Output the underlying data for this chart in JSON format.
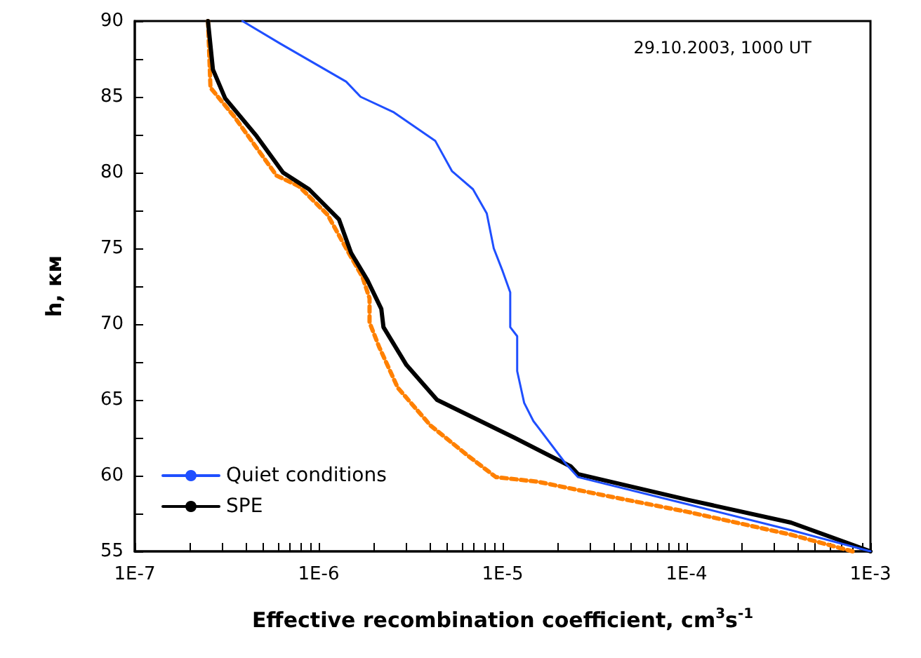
{
  "chart_data": {
    "type": "line",
    "xlabel": "Effective recombination coefficient, cm$^{3}$s$^{-1}$",
    "ylabel": "h, км",
    "annotations": [
      "29.10.2003, 1000 UT"
    ],
    "log": "x",
    "xlim": [
      1e-07,
      0.001
    ],
    "xticks": [
      {
        "value": 1e-07,
        "label": "1E-7"
      },
      {
        "value": 2e-07,
        "label": null
      },
      {
        "value": 3e-07,
        "label": null
      },
      {
        "value": 4e-07,
        "label": null
      },
      {
        "value": 5e-07,
        "label": null
      },
      {
        "value": 6e-07,
        "label": null
      },
      {
        "value": 7e-07,
        "label": null
      },
      {
        "value": 8e-07,
        "label": null
      },
      {
        "value": 9e-07,
        "label": null
      },
      {
        "value": 1e-06,
        "label": "1E-6"
      },
      {
        "value": 2e-06,
        "label": null
      },
      {
        "value": 3e-06,
        "label": null
      },
      {
        "value": 4e-06,
        "label": null
      },
      {
        "value": 5e-06,
        "label": null
      },
      {
        "value": 6e-06,
        "label": null
      },
      {
        "value": 7e-06,
        "label": null
      },
      {
        "value": 8e-06,
        "label": null
      },
      {
        "value": 9e-06,
        "label": null
      },
      {
        "value": 1e-05,
        "label": "1E-5"
      },
      {
        "value": 2e-05,
        "label": null
      },
      {
        "value": 3e-05,
        "label": null
      },
      {
        "value": 4e-05,
        "label": null
      },
      {
        "value": 5e-05,
        "label": null
      },
      {
        "value": 6e-05,
        "label": null
      },
      {
        "value": 7e-05,
        "label": null
      },
      {
        "value": 8e-05,
        "label": null
      },
      {
        "value": 9e-05,
        "label": null
      },
      {
        "value": 0.0001,
        "label": "1E-4"
      },
      {
        "value": 0.0002,
        "label": null
      },
      {
        "value": 0.0003,
        "label": null
      },
      {
        "value": 0.0004,
        "label": null
      },
      {
        "value": 0.0005,
        "label": null
      },
      {
        "value": 0.0006,
        "label": null
      },
      {
        "value": 0.0007,
        "label": null
      },
      {
        "value": 0.0008,
        "label": null
      },
      {
        "value": 0.0009,
        "label": null
      },
      {
        "value": 0.001,
        "label": "1E-3"
      }
    ],
    "ylim": [
      55,
      90
    ],
    "yticks": [
      55,
      {
        "value": 57.5,
        "label": null
      },
      60,
      {
        "value": 62.5,
        "label": null
      },
      65,
      {
        "value": 67.5,
        "label": null
      },
      70,
      {
        "value": 72.5,
        "label": null
      },
      75,
      {
        "value": 77.5,
        "label": null
      },
      80,
      {
        "value": 82.5,
        "label": null
      },
      85,
      {
        "value": 87.5,
        "label": null
      },
      90
    ],
    "grid": false,
    "legend": "bottom left",
    "marker": "none",
    "series": [
      {
        "name": "Quiet conditions",
        "color": "#1f4fff",
        "line_style": "solid",
        "x": [
          3.85e-07,
          6.2e-07,
          1.41e-06,
          1.69e-06,
          2.54e-06,
          4.3e-06,
          5.3e-06,
          6.9e-06,
          8.2e-06,
          8.95e-06,
          1e-05,
          1.1e-05,
          1.1e-05,
          1.2e-05,
          1.2e-05,
          1.31e-05,
          1.47e-05,
          2.2e-05,
          2.57e-05,
          0.000102,
          0.00037,
          0.001
        ],
        "values": [
          90,
          88.5,
          86,
          85,
          84,
          82.1,
          80.1,
          78.9,
          77.3,
          75,
          73.5,
          72.1,
          69.8,
          69.2,
          66.9,
          64.8,
          63.6,
          60.8,
          59.9,
          58.1,
          56.4,
          55
        ]
      },
      {
        "name": "SPE",
        "color": "#000000",
        "line_style": "solid",
        "x": [
          2.5e-07,
          2.66e-07,
          3.1e-07,
          4.6e-07,
          6.4e-07,
          8.85e-07,
          1.29e-06,
          1.5e-06,
          1.84e-06,
          2.19e-06,
          2.25e-06,
          3e-06,
          4.4e-06,
          1.16e-05,
          2.35e-05,
          2.57e-05,
          0.000102,
          0.00037,
          0.001
        ],
        "values": [
          90,
          86.8,
          84.9,
          82.4,
          80,
          78.9,
          76.9,
          74.7,
          72.9,
          71,
          69.8,
          67.3,
          65,
          62.5,
          60.6,
          60.1,
          58.4,
          56.9,
          55
        ]
      },
      {
        "color": "#ff8000",
        "line_style": "dashed",
        "x": [
          2.5e-07,
          2.58e-07,
          3.47e-07,
          5.9e-07,
          7.8e-07,
          1.12e-06,
          1.41e-06,
          1.73e-06,
          1.89e-06,
          1.89e-06,
          2.13e-06,
          2.69e-06,
          4.06e-06,
          6.5e-06,
          9.2e-06,
          1.55e-05,
          3.55e-05,
          0.000102,
          0.00037,
          0.0008
        ],
        "values": [
          90,
          85.6,
          83.7,
          79.8,
          79.1,
          77.2,
          75,
          73.1,
          71.7,
          70.1,
          68.5,
          65.8,
          63.3,
          61.3,
          59.9,
          59.6,
          58.7,
          57.6,
          56.1,
          55
        ]
      }
    ]
  }
}
